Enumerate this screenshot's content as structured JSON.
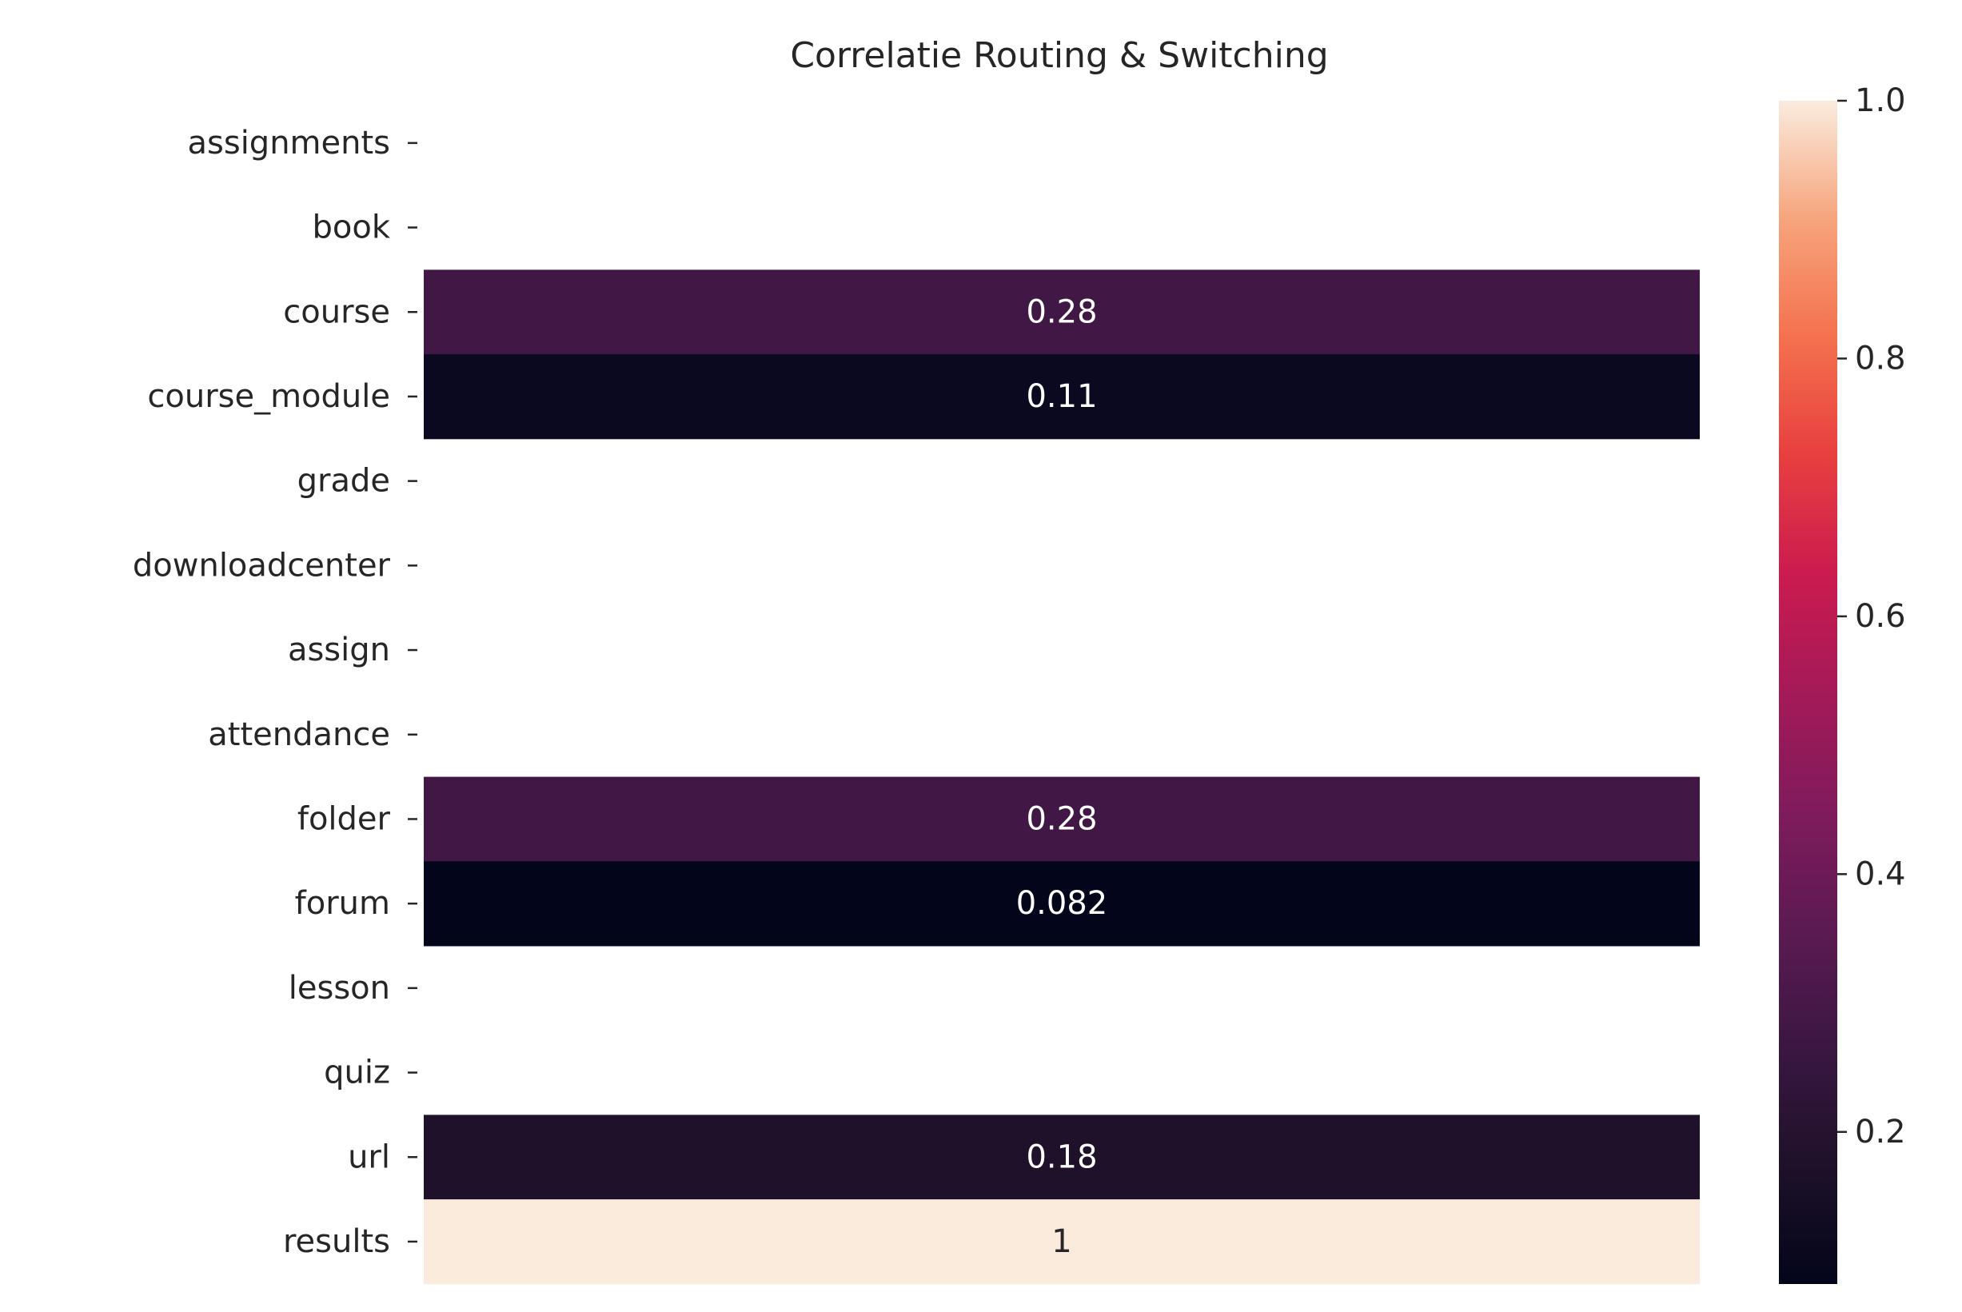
{
  "chart_data": {
    "type": "heatmap",
    "title": "Correlatie Routing & Switching",
    "xlabel": "",
    "ylabel": "",
    "rows": [
      "assignments",
      "book",
      "course",
      "course_module",
      "grade",
      "downloadcenter",
      "assign",
      "attendance",
      "folder",
      "forum",
      "lesson",
      "quiz",
      "url",
      "results"
    ],
    "values": [
      null,
      null,
      0.28,
      0.11,
      null,
      null,
      null,
      null,
      0.28,
      0.082,
      null,
      null,
      0.18,
      1
    ],
    "annotations": [
      "",
      "",
      "0.28",
      "0.11",
      "",
      "",
      "",
      "",
      "0.28",
      "0.082",
      "",
      "",
      "0.18",
      "1"
    ],
    "colormap": "rocket",
    "vmin": 0.082,
    "vmax": 1.0,
    "colorbar_ticks": [
      0.2,
      0.4,
      0.6,
      0.8,
      1.0
    ],
    "colorbar_tick_labels": [
      "0.2",
      "0.4",
      "0.6",
      "0.8",
      "1.0"
    ],
    "missing_cell_color": "#ffffff",
    "grid": false
  }
}
